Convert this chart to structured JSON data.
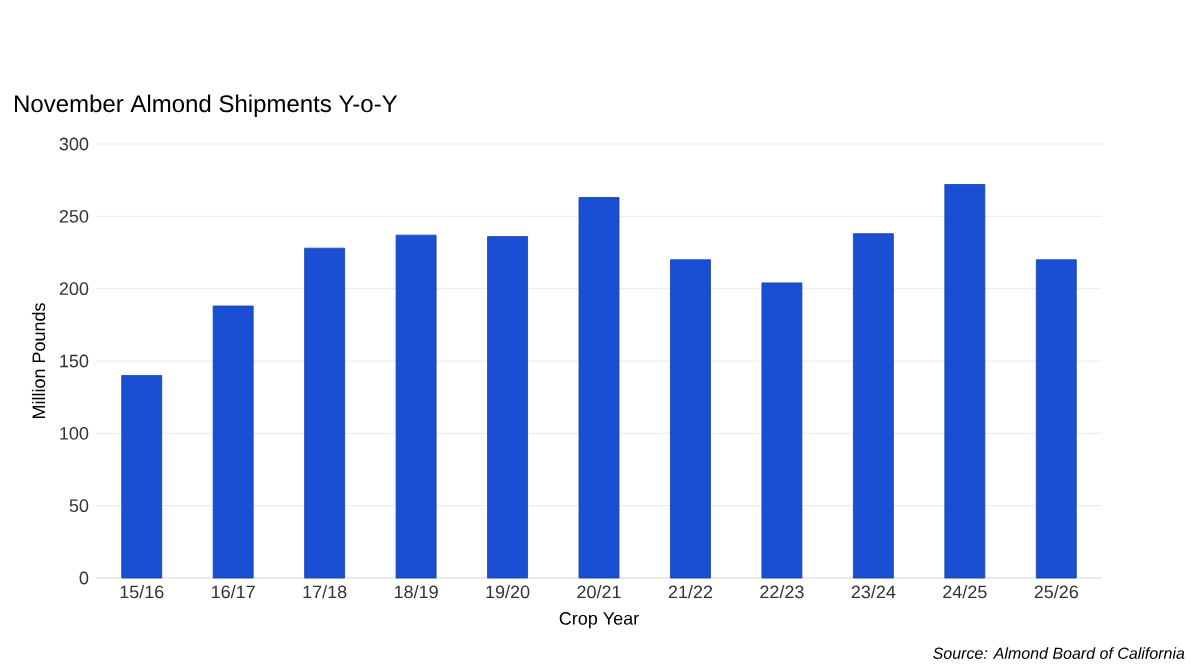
{
  "chart_data": {
    "type": "bar",
    "title": "November Almond Shipments Y-o-Y",
    "xlabel": "Crop Year",
    "ylabel": "Million Pounds",
    "categories": [
      "15/16",
      "16/17",
      "17/18",
      "18/19",
      "19/20",
      "20/21",
      "21/22",
      "22/23",
      "23/24",
      "24/25",
      "25/26"
    ],
    "values": [
      140,
      188,
      228,
      237,
      236,
      263,
      220,
      204,
      238,
      272,
      220
    ],
    "color": "#1a4fd4",
    "ylim": [
      0,
      300
    ],
    "yticks": [
      0,
      50,
      100,
      150,
      200,
      250,
      300
    ],
    "grid": "y",
    "annotations": [
      "Source: Almond Board of California"
    ]
  }
}
